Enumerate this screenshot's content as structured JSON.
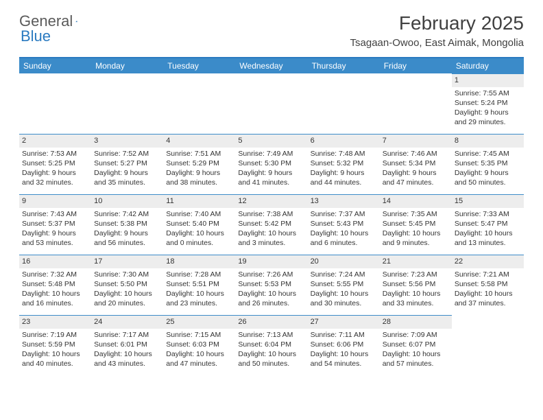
{
  "logo": {
    "text1": "General",
    "text2": "Blue"
  },
  "month_title": "February 2025",
  "location": "Tsagaan-Owoo, East Aimak, Mongolia",
  "colors": {
    "header_bar": "#3b8bc9",
    "rule": "#2a7ac0",
    "daynum_bg": "#ededed",
    "text": "#343434"
  },
  "weekdays": [
    "Sunday",
    "Monday",
    "Tuesday",
    "Wednesday",
    "Thursday",
    "Friday",
    "Saturday"
  ],
  "weeks": [
    [
      null,
      null,
      null,
      null,
      null,
      null,
      {
        "n": "1",
        "sunrise": "Sunrise: 7:55 AM",
        "sunset": "Sunset: 5:24 PM",
        "day1": "Daylight: 9 hours",
        "day2": "and 29 minutes."
      }
    ],
    [
      {
        "n": "2",
        "sunrise": "Sunrise: 7:53 AM",
        "sunset": "Sunset: 5:25 PM",
        "day1": "Daylight: 9 hours",
        "day2": "and 32 minutes."
      },
      {
        "n": "3",
        "sunrise": "Sunrise: 7:52 AM",
        "sunset": "Sunset: 5:27 PM",
        "day1": "Daylight: 9 hours",
        "day2": "and 35 minutes."
      },
      {
        "n": "4",
        "sunrise": "Sunrise: 7:51 AM",
        "sunset": "Sunset: 5:29 PM",
        "day1": "Daylight: 9 hours",
        "day2": "and 38 minutes."
      },
      {
        "n": "5",
        "sunrise": "Sunrise: 7:49 AM",
        "sunset": "Sunset: 5:30 PM",
        "day1": "Daylight: 9 hours",
        "day2": "and 41 minutes."
      },
      {
        "n": "6",
        "sunrise": "Sunrise: 7:48 AM",
        "sunset": "Sunset: 5:32 PM",
        "day1": "Daylight: 9 hours",
        "day2": "and 44 minutes."
      },
      {
        "n": "7",
        "sunrise": "Sunrise: 7:46 AM",
        "sunset": "Sunset: 5:34 PM",
        "day1": "Daylight: 9 hours",
        "day2": "and 47 minutes."
      },
      {
        "n": "8",
        "sunrise": "Sunrise: 7:45 AM",
        "sunset": "Sunset: 5:35 PM",
        "day1": "Daylight: 9 hours",
        "day2": "and 50 minutes."
      }
    ],
    [
      {
        "n": "9",
        "sunrise": "Sunrise: 7:43 AM",
        "sunset": "Sunset: 5:37 PM",
        "day1": "Daylight: 9 hours",
        "day2": "and 53 minutes."
      },
      {
        "n": "10",
        "sunrise": "Sunrise: 7:42 AM",
        "sunset": "Sunset: 5:38 PM",
        "day1": "Daylight: 9 hours",
        "day2": "and 56 minutes."
      },
      {
        "n": "11",
        "sunrise": "Sunrise: 7:40 AM",
        "sunset": "Sunset: 5:40 PM",
        "day1": "Daylight: 10 hours",
        "day2": "and 0 minutes."
      },
      {
        "n": "12",
        "sunrise": "Sunrise: 7:38 AM",
        "sunset": "Sunset: 5:42 PM",
        "day1": "Daylight: 10 hours",
        "day2": "and 3 minutes."
      },
      {
        "n": "13",
        "sunrise": "Sunrise: 7:37 AM",
        "sunset": "Sunset: 5:43 PM",
        "day1": "Daylight: 10 hours",
        "day2": "and 6 minutes."
      },
      {
        "n": "14",
        "sunrise": "Sunrise: 7:35 AM",
        "sunset": "Sunset: 5:45 PM",
        "day1": "Daylight: 10 hours",
        "day2": "and 9 minutes."
      },
      {
        "n": "15",
        "sunrise": "Sunrise: 7:33 AM",
        "sunset": "Sunset: 5:47 PM",
        "day1": "Daylight: 10 hours",
        "day2": "and 13 minutes."
      }
    ],
    [
      {
        "n": "16",
        "sunrise": "Sunrise: 7:32 AM",
        "sunset": "Sunset: 5:48 PM",
        "day1": "Daylight: 10 hours",
        "day2": "and 16 minutes."
      },
      {
        "n": "17",
        "sunrise": "Sunrise: 7:30 AM",
        "sunset": "Sunset: 5:50 PM",
        "day1": "Daylight: 10 hours",
        "day2": "and 20 minutes."
      },
      {
        "n": "18",
        "sunrise": "Sunrise: 7:28 AM",
        "sunset": "Sunset: 5:51 PM",
        "day1": "Daylight: 10 hours",
        "day2": "and 23 minutes."
      },
      {
        "n": "19",
        "sunrise": "Sunrise: 7:26 AM",
        "sunset": "Sunset: 5:53 PM",
        "day1": "Daylight: 10 hours",
        "day2": "and 26 minutes."
      },
      {
        "n": "20",
        "sunrise": "Sunrise: 7:24 AM",
        "sunset": "Sunset: 5:55 PM",
        "day1": "Daylight: 10 hours",
        "day2": "and 30 minutes."
      },
      {
        "n": "21",
        "sunrise": "Sunrise: 7:23 AM",
        "sunset": "Sunset: 5:56 PM",
        "day1": "Daylight: 10 hours",
        "day2": "and 33 minutes."
      },
      {
        "n": "22",
        "sunrise": "Sunrise: 7:21 AM",
        "sunset": "Sunset: 5:58 PM",
        "day1": "Daylight: 10 hours",
        "day2": "and 37 minutes."
      }
    ],
    [
      {
        "n": "23",
        "sunrise": "Sunrise: 7:19 AM",
        "sunset": "Sunset: 5:59 PM",
        "day1": "Daylight: 10 hours",
        "day2": "and 40 minutes."
      },
      {
        "n": "24",
        "sunrise": "Sunrise: 7:17 AM",
        "sunset": "Sunset: 6:01 PM",
        "day1": "Daylight: 10 hours",
        "day2": "and 43 minutes."
      },
      {
        "n": "25",
        "sunrise": "Sunrise: 7:15 AM",
        "sunset": "Sunset: 6:03 PM",
        "day1": "Daylight: 10 hours",
        "day2": "and 47 minutes."
      },
      {
        "n": "26",
        "sunrise": "Sunrise: 7:13 AM",
        "sunset": "Sunset: 6:04 PM",
        "day1": "Daylight: 10 hours",
        "day2": "and 50 minutes."
      },
      {
        "n": "27",
        "sunrise": "Sunrise: 7:11 AM",
        "sunset": "Sunset: 6:06 PM",
        "day1": "Daylight: 10 hours",
        "day2": "and 54 minutes."
      },
      {
        "n": "28",
        "sunrise": "Sunrise: 7:09 AM",
        "sunset": "Sunset: 6:07 PM",
        "day1": "Daylight: 10 hours",
        "day2": "and 57 minutes."
      },
      null
    ]
  ]
}
